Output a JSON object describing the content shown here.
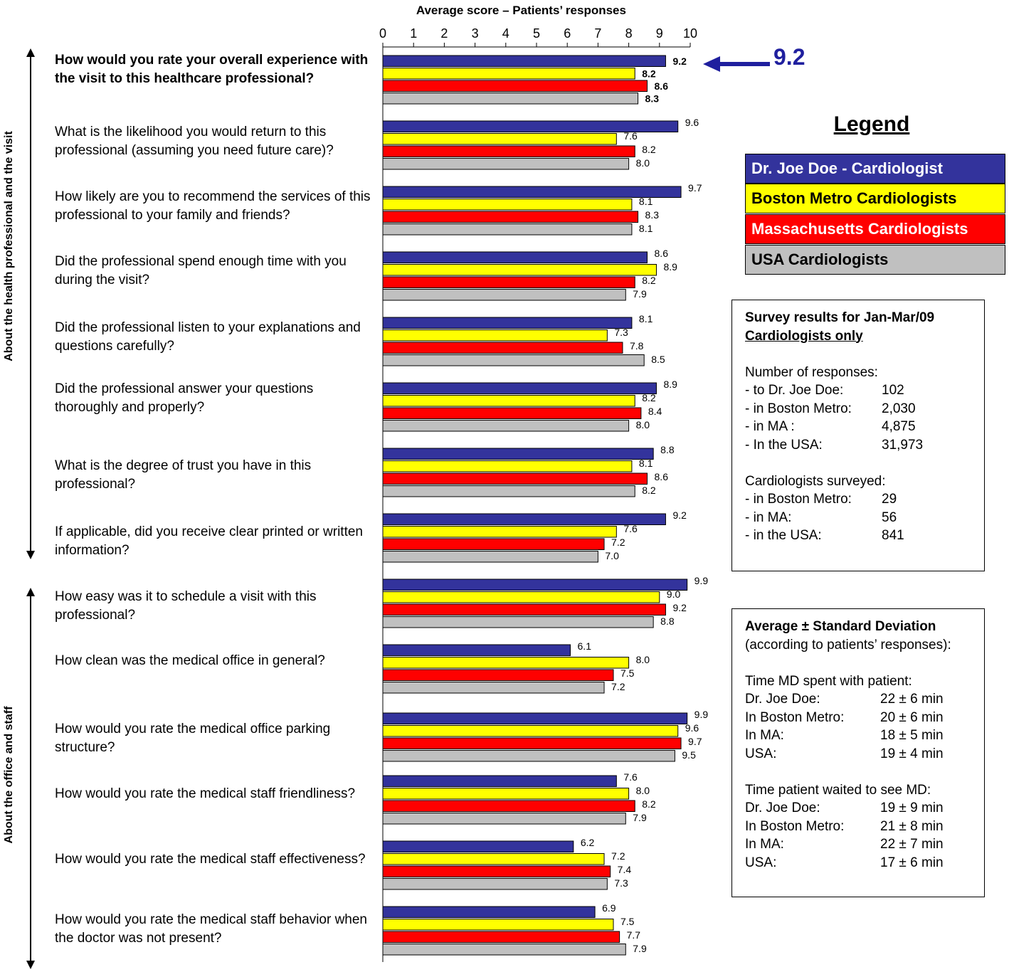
{
  "chart_data": {
    "type": "bar",
    "orientation": "horizontal",
    "title": "Average score – Patients’ responses",
    "xlim": [
      0,
      10
    ],
    "xticks": [
      0,
      1,
      2,
      3,
      4,
      5,
      6,
      7,
      8,
      9,
      10
    ],
    "grid": false,
    "legend_placement": "right",
    "series": [
      {
        "name": "Dr. Joe Doe - Cardiologist",
        "color": "#33339c",
        "values": [
          9.2,
          9.6,
          9.7,
          8.6,
          8.1,
          8.9,
          8.8,
          9.2,
          9.9,
          6.1,
          9.9,
          7.6,
          6.2,
          6.9
        ]
      },
      {
        "name": "Boston Metro Cardiologists",
        "color": "#ffff00",
        "values": [
          8.2,
          7.6,
          8.1,
          8.9,
          7.3,
          8.2,
          8.1,
          7.6,
          9.0,
          8.0,
          9.6,
          8.0,
          7.2,
          7.5
        ]
      },
      {
        "name": "Massachusetts Cardiologists",
        "color": "#ff0000",
        "values": [
          8.6,
          8.2,
          8.3,
          8.2,
          7.8,
          8.4,
          8.6,
          7.2,
          9.2,
          7.5,
          9.7,
          8.2,
          7.4,
          7.7
        ]
      },
      {
        "name": "USA Cardiologists",
        "color": "#c0c0c0",
        "values": [
          8.3,
          8.0,
          8.1,
          7.9,
          8.5,
          8.0,
          8.2,
          7.0,
          8.8,
          7.2,
          9.5,
          7.9,
          7.3,
          7.9
        ]
      }
    ],
    "value_labels": [
      [
        "9.2",
        "8.2",
        "8.6",
        "8.3"
      ],
      [
        "9.6",
        "7.6",
        "8.2",
        "8.0"
      ],
      [
        "9.7",
        "8.1",
        "8.3",
        "8.1"
      ],
      [
        "8.6",
        "8.9",
        "8.2",
        "7.9"
      ],
      [
        "8.1",
        "7.3",
        "7.8",
        "8.5"
      ],
      [
        "8.9",
        "8.2",
        "8.4",
        "8.0"
      ],
      [
        "8.8",
        "8.1",
        "8.6",
        "8.2"
      ],
      [
        "9.2",
        "7.6",
        "7.2",
        "7.0"
      ],
      [
        "9.9",
        "9.0",
        "9.2",
        "8.8"
      ],
      [
        "6.1",
        "8.0",
        "7.5",
        "7.2"
      ],
      [
        "9.9",
        "9.6",
        "9.7",
        "9.5"
      ],
      [
        "7.6",
        "8.0",
        "8.2",
        "7.9"
      ],
      [
        "6.2",
        "7.2",
        "7.4",
        "7.3"
      ],
      [
        "6.9",
        "7.5",
        "7.7",
        "7.9"
      ]
    ],
    "categories": [
      "How would you rate your overall experience with the visit to this healthcare professional?",
      "What is the likelihood you would return to this professional (assuming you need future care)?",
      "How likely are you to recommend the services of this professional to your family and friends?",
      "Did the professional spend enough time with you during the visit?",
      "Did the professional listen to your explanations and questions carefully?",
      "Did the professional answer your questions thoroughly and properly?",
      "What is the degree of trust you have in this professional?",
      "If applicable, did you receive clear printed or written information?",
      "How easy was it to schedule a visit with this professional?",
      "How clean was the medical office in general?",
      "How would you rate the medical office parking structure?",
      "How would you rate the medical staff friendliness?",
      "How would you rate the medical staff effectiveness?",
      "How would you rate the medical staff behavior when the doctor was not present?"
    ],
    "group_labels": [
      "About the health professional and the visit",
      "About the office and staff"
    ],
    "callout": "9.2"
  },
  "legend": {
    "title": "Legend",
    "items": [
      {
        "label": "Dr. Joe Doe - Cardiologist",
        "bg": "#33339c",
        "fg": "#ffffff"
      },
      {
        "label": "Boston Metro Cardiologists",
        "bg": "#ffff00",
        "fg": "#000000"
      },
      {
        "label": "Massachusetts Cardiologists",
        "bg": "#ff0000",
        "fg": "#ffffff"
      },
      {
        "label": "USA Cardiologists",
        "bg": "#c0c0c0",
        "fg": "#000000"
      }
    ]
  },
  "survey": {
    "title1": "Survey results for Jan-Mar/09",
    "title2": "Cardiologists only",
    "responses_heading": "Number of responses:",
    "responses": [
      {
        "label": "- to Dr. Joe Doe:",
        "value": "102"
      },
      {
        "label": "- in Boston Metro:",
        "value": "2,030"
      },
      {
        "label": "- in MA :",
        "value": "4,875"
      },
      {
        "label": "- In the USA:",
        "value": "31,973"
      }
    ],
    "surveyed_heading": "Cardiologists surveyed:",
    "surveyed": [
      {
        "label": "- in Boston Metro:",
        "value": "29"
      },
      {
        "label": "- in MA:",
        "value": "56"
      },
      {
        "label": "- in the USA:",
        "value": "841"
      }
    ]
  },
  "stats": {
    "title": "Average ± Standard Deviation",
    "subtitle": "(according to patients’ responses):",
    "time_heading": "Time MD spent with patient:",
    "time": [
      {
        "label": "Dr. Joe Doe:",
        "value": "22 ± 6 min"
      },
      {
        "label": "In Boston Metro:",
        "value": "20 ± 6 min"
      },
      {
        "label": "In MA:",
        "value": "18 ± 5 min"
      },
      {
        "label": "USA:",
        "value": "19 ± 4 min"
      }
    ],
    "wait_heading": "Time patient waited to see MD:",
    "wait": [
      {
        "label": "Dr. Joe Doe:",
        "value": "19 ± 9 min"
      },
      {
        "label": "In Boston Metro:",
        "value": "21 ± 8 min"
      },
      {
        "label": "In MA:",
        "value": "22 ± 7 min"
      },
      {
        "label": "USA:",
        "value": "17 ± 6 min"
      }
    ]
  }
}
